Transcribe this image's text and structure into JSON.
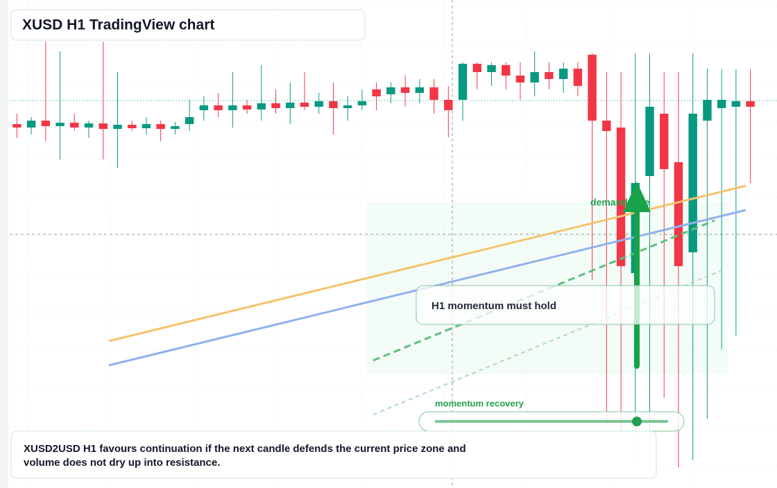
{
  "chart_data": {
    "type": "candlestick",
    "title": "XUSD H1 TradingView chart",
    "up_color": "#089981",
    "down_color": "#f23645",
    "ylim": [
      0,
      704
    ],
    "open": [
      525,
      520,
      530,
      522,
      527,
      520,
      526,
      518,
      524,
      519,
      525,
      518,
      525,
      545,
      552,
      545,
      552,
      546,
      555,
      548,
      556,
      550,
      558,
      548,
      552,
      575,
      568,
      578,
      570,
      578,
      560,
      560,
      612,
      600,
      610,
      595,
      585,
      600,
      590,
      605,
      625,
      530,
      520,
      310,
      450,
      540,
      470,
      340,
      530,
      548,
      550,
      558
    ],
    "close": [
      520,
      530,
      522,
      527,
      520,
      526,
      518,
      524,
      519,
      525,
      518,
      522,
      535,
      552,
      545,
      552,
      546,
      555,
      548,
      556,
      550,
      558,
      548,
      552,
      558,
      565,
      578,
      570,
      578,
      560,
      545,
      612,
      600,
      610,
      595,
      585,
      600,
      590,
      605,
      580,
      530,
      515,
      320,
      440,
      550,
      460,
      320,
      540,
      560,
      560,
      558,
      550
    ],
    "high": [
      540,
      535,
      644,
      630,
      540,
      530,
      644,
      600,
      530,
      535,
      530,
      528,
      560,
      565,
      570,
      600,
      560,
      610,
      575,
      585,
      600,
      570,
      585,
      565,
      575,
      585,
      585,
      595,
      590,
      590,
      580,
      614,
      614,
      614,
      614,
      614,
      630,
      614,
      614,
      614,
      627,
      600,
      600,
      627,
      627,
      600,
      600,
      627,
      605,
      604,
      604,
      604
    ],
    "low": [
      505,
      510,
      500,
      474,
      515,
      505,
      474,
      462,
      515,
      510,
      500,
      510,
      515,
      530,
      535,
      520,
      540,
      530,
      540,
      525,
      545,
      540,
      510,
      530,
      545,
      545,
      555,
      550,
      555,
      540,
      506,
      530,
      575,
      580,
      575,
      560,
      565,
      575,
      570,
      565,
      300,
      90,
      80,
      40,
      20,
      130,
      30,
      40,
      100,
      200,
      220,
      440
    ],
    "annotations": {
      "zone": "demand side",
      "callout": "H1 momentum must hold",
      "slider": "momentum recovery"
    },
    "footer": [
      "XUSD2USD H1 favours continuation if the next candle defends the current price zone and",
      "volume does not dry up into resistance."
    ]
  }
}
